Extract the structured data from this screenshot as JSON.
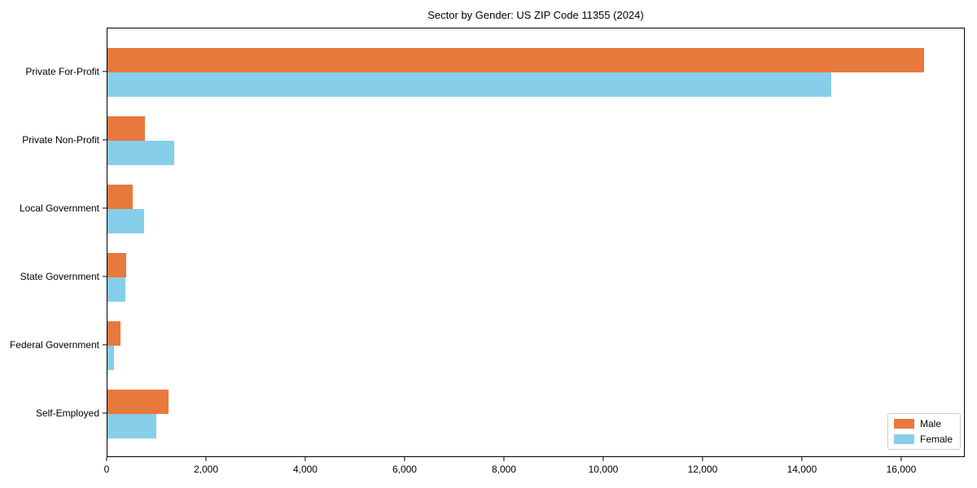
{
  "figure": {
    "title": "Sector by Gender: US ZIP Code 11355 (2024)"
  },
  "chart_data": {
    "type": "bar",
    "orientation": "horizontal",
    "title": "Sector by Gender: US ZIP Code 11355 (2024)",
    "categories": [
      "Private For-Profit",
      "Private Non-Profit",
      "Local Government",
      "State Government",
      "Federal Government",
      "Self-Employed"
    ],
    "series": [
      {
        "name": "Male",
        "color": "#E8793C",
        "values": [
          16480,
          750,
          510,
          370,
          255,
          1240
        ]
      },
      {
        "name": "Female",
        "color": "#87CEEB",
        "values": [
          14600,
          1340,
          740,
          360,
          135,
          990
        ]
      }
    ],
    "xlabel": "",
    "ylabel": "",
    "xlim": [
      0,
      17280
    ],
    "xticks": [
      0,
      2000,
      4000,
      6000,
      8000,
      10000,
      12000,
      14000,
      16000
    ],
    "xtick_labels": [
      "0",
      "2,000",
      "4,000",
      "6,000",
      "8,000",
      "10,000",
      "12,000",
      "14,000",
      "16,000"
    ],
    "grid": false,
    "legend": {
      "position": "lower right",
      "entries": [
        "Male",
        "Female"
      ]
    }
  }
}
